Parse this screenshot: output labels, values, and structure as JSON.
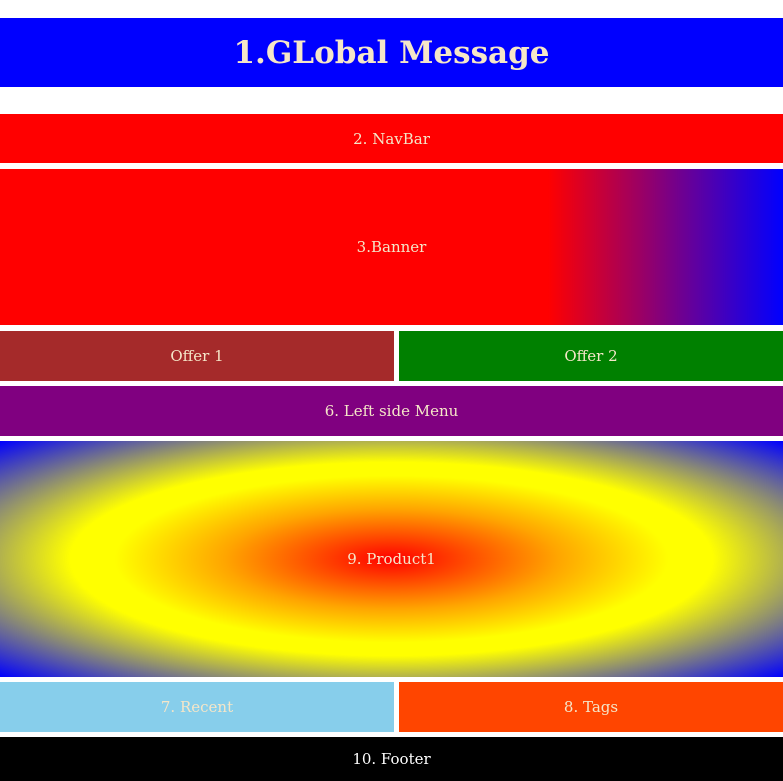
{
  "global_message": {
    "label": "1.GLobal Message",
    "color": "#0000ff"
  },
  "navbar": {
    "label": "2. NavBar",
    "color": "#ff0000"
  },
  "banner": {
    "label": "3.Banner",
    "color_start": "#ff0000",
    "color_end": "#0000ff"
  },
  "offers": [
    {
      "label": "Offer 1",
      "color": "#a52a2a"
    },
    {
      "label": "Offer 2",
      "color": "#008000"
    }
  ],
  "left_menu": {
    "label": "6. Left side Menu",
    "color": "#800080"
  },
  "product1": {
    "label": "9. Product1",
    "colors": [
      "#ff0000",
      "#ffa500",
      "#ffff00",
      "#0000ff"
    ]
  },
  "recent": {
    "label": "7. Recent",
    "color": "#87ceeb"
  },
  "tags": {
    "label": "8. Tags",
    "color": "#ff4500"
  },
  "footer": {
    "label": "10. Footer",
    "color": "#000000"
  }
}
